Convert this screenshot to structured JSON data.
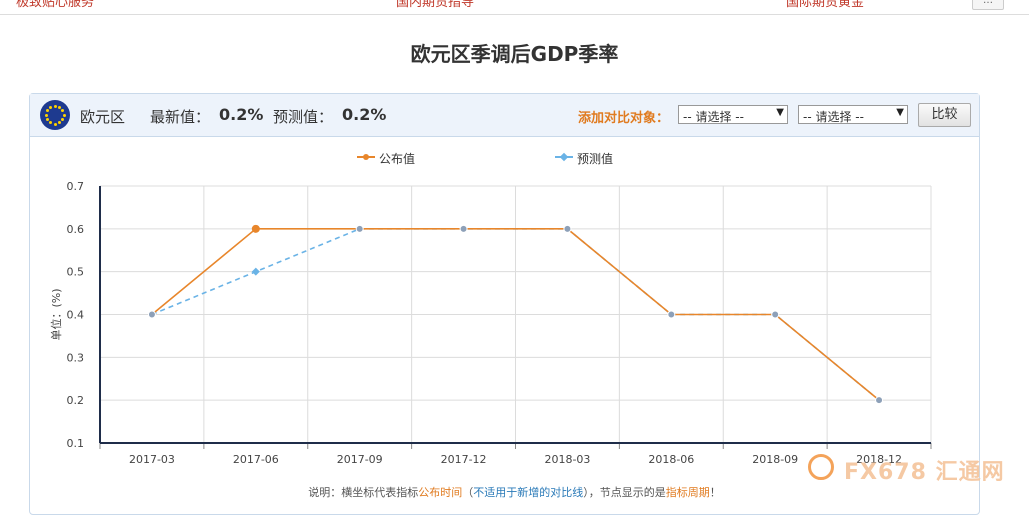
{
  "top_nav": {
    "links": [
      "极致贴心服务",
      "国内期货指导",
      "国际期货黄金"
    ],
    "button": "…"
  },
  "page_title": "欧元区季调后GDP季率",
  "header": {
    "region": "欧元区",
    "latest_label": "最新值：",
    "latest_value": "0.2%",
    "forecast_label": "预测值：",
    "forecast_value": "0.2%",
    "compare_label": "添加对比对象：",
    "select1": "-- 请选择 --",
    "select2": "-- 请选择 --",
    "compare_button": "比较"
  },
  "note": {
    "prefix": "说明：横坐标代表指标",
    "p1": "公布时间",
    "p2": "（",
    "p3": "不适用于新增的对比线",
    "p4": "），节点显示的是",
    "p5": "指标周期",
    "p6": "！"
  },
  "watermark": "FX678 汇通网",
  "colors": {
    "published": "#e8862b",
    "forecast": "#6ab3e6",
    "accent": "#e07b20",
    "axis": "#1f2d4a"
  },
  "chart_data": {
    "type": "line",
    "title": "欧元区季调后GDP季率",
    "ylabel": "单位：(%)",
    "xlabel": "",
    "categories": [
      "2017-03",
      "2017-06",
      "2017-09",
      "2017-12",
      "2018-03",
      "2018-06",
      "2018-09",
      "2018-12"
    ],
    "ylim": [
      0.1,
      0.7
    ],
    "yticks": [
      "0.1",
      "0.2",
      "0.3",
      "0.4",
      "0.5",
      "0.6",
      "0.7"
    ],
    "grid": true,
    "legend": "top-center",
    "series": [
      {
        "name": "公布值",
        "values": [
          0.4,
          0.6,
          0.6,
          0.6,
          0.6,
          0.4,
          0.4,
          0.2
        ],
        "color": "#e8862b",
        "dashed": false
      },
      {
        "name": "预测值",
        "values": [
          0.4,
          0.5,
          0.6,
          0.6,
          0.6,
          0.4,
          0.4,
          0.2
        ],
        "color": "#6ab3e6",
        "dashed": true
      }
    ]
  }
}
